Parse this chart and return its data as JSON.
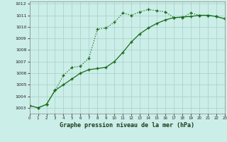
{
  "title": "Graphe pression niveau de la mer (hPa)",
  "bg_color": "#cceee8",
  "grid_color": "#aad4cc",
  "line_color": "#1a6b1a",
  "x_min": 0,
  "x_max": 23,
  "y_min": 1002.5,
  "y_max": 1012.2,
  "x_ticks": [
    0,
    1,
    2,
    3,
    4,
    5,
    6,
    7,
    8,
    9,
    10,
    11,
    12,
    13,
    14,
    15,
    16,
    17,
    18,
    19,
    20,
    21,
    22,
    23
  ],
  "y_ticks": [
    1003,
    1004,
    1005,
    1006,
    1007,
    1008,
    1009,
    1010,
    1011,
    1012
  ],
  "series1_x": [
    0,
    1,
    2,
    3,
    4,
    5,
    6,
    7,
    8,
    9,
    10,
    11,
    12,
    13,
    14,
    15,
    16,
    17,
    18,
    19,
    20,
    21,
    22,
    23
  ],
  "series1_y": [
    1003.2,
    1003.0,
    1003.3,
    1004.5,
    1005.8,
    1006.5,
    1006.6,
    1007.3,
    1009.8,
    1009.9,
    1010.4,
    1011.2,
    1011.0,
    1011.3,
    1011.5,
    1011.4,
    1011.3,
    1010.8,
    1010.8,
    1011.2,
    1011.0,
    1011.0,
    1010.9,
    1010.7
  ],
  "series2_x": [
    0,
    1,
    2,
    3,
    4,
    5,
    6,
    7,
    8,
    9,
    10,
    11,
    12,
    13,
    14,
    15,
    16,
    17,
    18,
    19,
    20,
    21,
    22,
    23
  ],
  "series2_y": [
    1003.2,
    1003.0,
    1003.3,
    1004.5,
    1005.0,
    1005.5,
    1006.0,
    1006.3,
    1006.4,
    1006.5,
    1007.0,
    1007.8,
    1008.7,
    1009.4,
    1009.9,
    1010.3,
    1010.6,
    1010.8,
    1010.85,
    1010.9,
    1011.0,
    1011.0,
    1010.9,
    1010.7
  ]
}
